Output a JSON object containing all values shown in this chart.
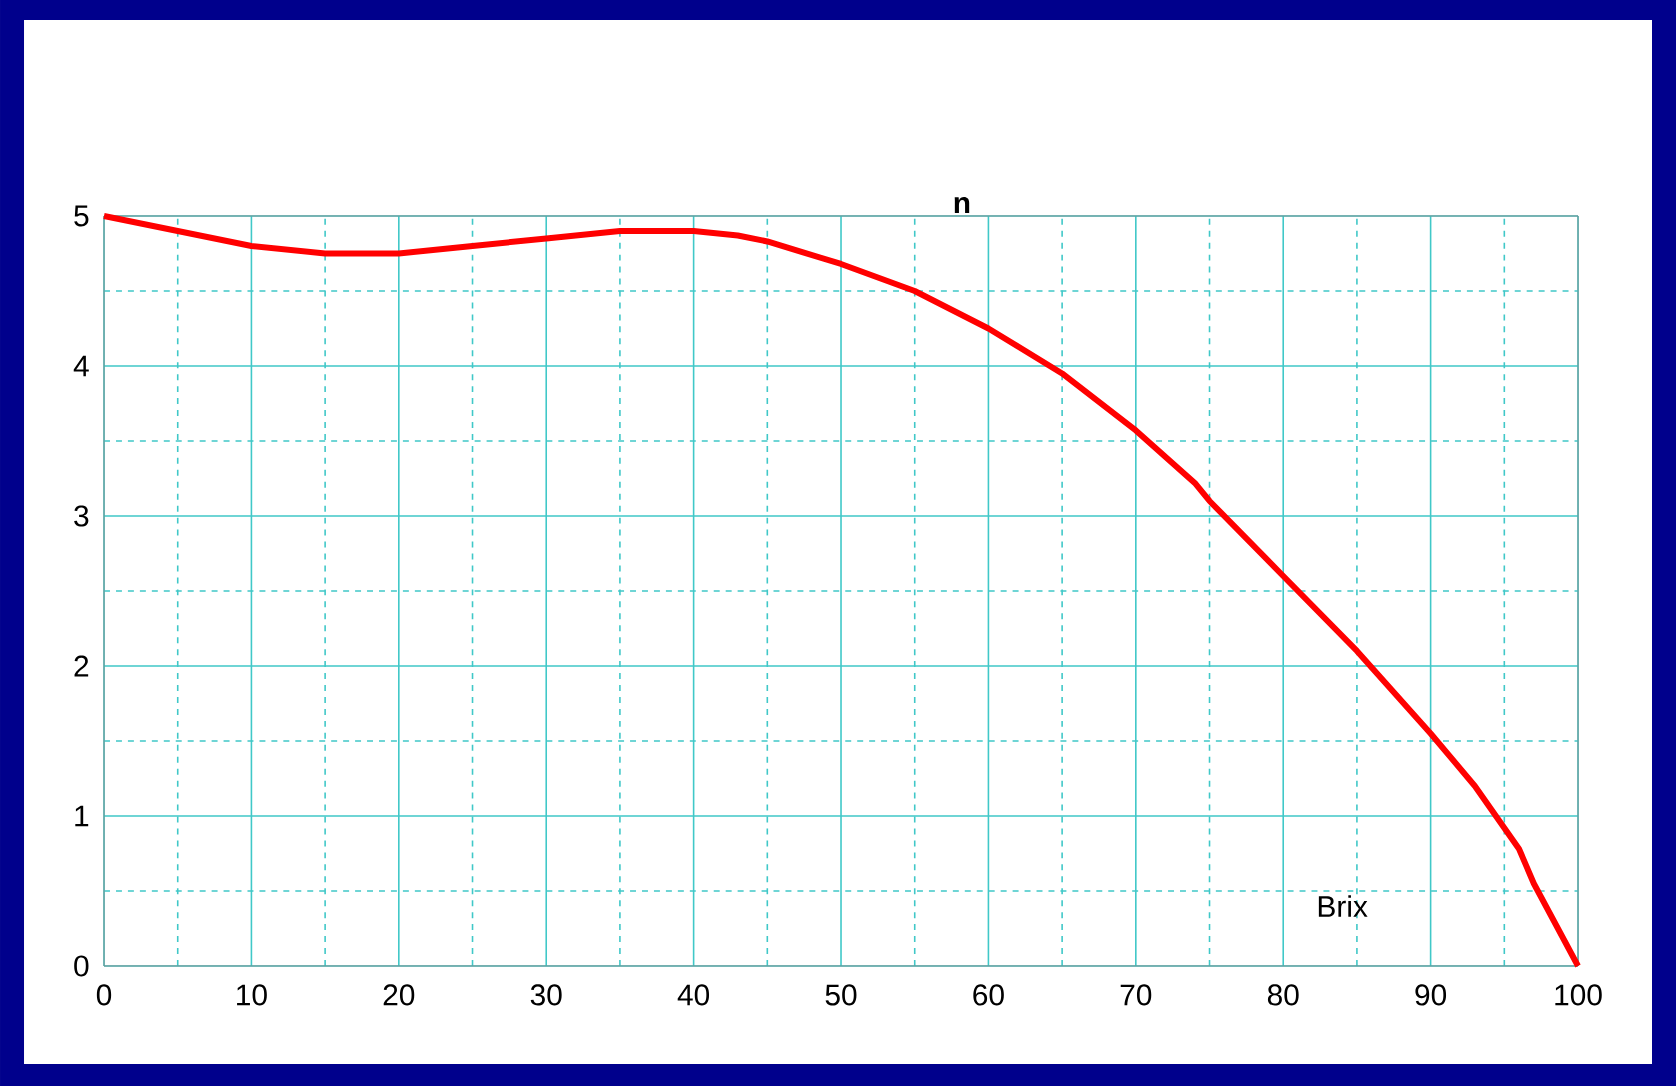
{
  "chart_data": {
    "type": "line",
    "ylabel": "n",
    "xlabel": "Brix",
    "x": [
      0,
      5,
      10,
      15,
      20,
      25,
      30,
      35,
      40,
      43,
      45,
      50,
      55,
      60,
      65,
      70,
      74,
      75,
      80,
      85,
      90,
      93,
      96,
      97,
      100
    ],
    "series": [
      {
        "color": "#ff0000",
        "values": [
          5.0,
          4.9,
          4.8,
          4.75,
          4.75,
          4.8,
          4.85,
          4.9,
          4.9,
          4.87,
          4.83,
          4.68,
          4.5,
          4.25,
          3.95,
          3.57,
          3.22,
          3.1,
          2.6,
          2.1,
          1.55,
          1.2,
          0.78,
          0.55,
          0.0
        ]
      }
    ],
    "xlim": [
      0,
      100
    ],
    "ylim": [
      0,
      5
    ],
    "xticks": [
      0,
      {
        "value": 5,
        "label": null
      },
      10,
      {
        "value": 15,
        "label": null
      },
      20,
      {
        "value": 25,
        "label": null
      },
      30,
      {
        "value": 35,
        "label": null
      },
      40,
      {
        "value": 45,
        "label": null
      },
      50,
      {
        "value": 55,
        "label": null
      },
      60,
      {
        "value": 65,
        "label": null
      },
      70,
      {
        "value": 75,
        "label": null
      },
      80,
      {
        "value": 85,
        "label": null
      },
      90,
      {
        "value": 95,
        "label": null
      },
      100
    ],
    "yticks": [
      0,
      {
        "value": 0.5,
        "label": null
      },
      1,
      {
        "value": 1.5,
        "label": null
      },
      2,
      {
        "value": 2.5,
        "label": null
      },
      3,
      {
        "value": 3.5,
        "label": null
      },
      4,
      {
        "value": 4.5,
        "label": null
      },
      5
    ],
    "grid": true,
    "legend": false,
    "marker": "none",
    "line_style": "solid"
  }
}
